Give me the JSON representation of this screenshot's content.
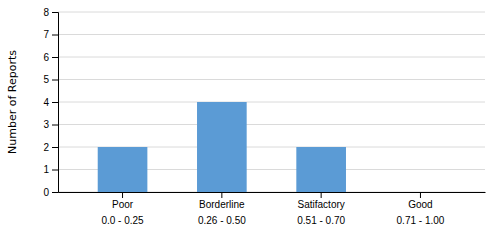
{
  "chart_data": {
    "type": "bar",
    "categories": [
      "Poor",
      "Borderline",
      "Satifactory",
      "Good"
    ],
    "subcategories": [
      "0.0 - 0.25",
      "0.26 - 0.50",
      "0.51 - 0.70",
      "0.71 - 1.00"
    ],
    "values": [
      2,
      4,
      2,
      0
    ],
    "color": "#5b9bd5",
    "ylabel": "Number of Reports",
    "ylim": [
      0,
      8
    ],
    "yticks": [
      0,
      1,
      2,
      3,
      4,
      5,
      6,
      7,
      8
    ],
    "grid": true
  }
}
